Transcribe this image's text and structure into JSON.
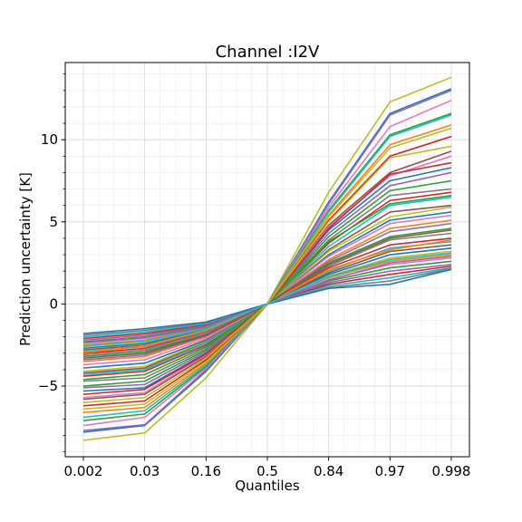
{
  "chart_data": {
    "type": "line",
    "title": "Channel :I2V",
    "xlabel": "Quantiles",
    "ylabel": "Prediction uncertainty [K]",
    "categories": [
      "0.002",
      "0.03",
      "0.16",
      "0.5",
      "0.84",
      "0.97",
      "0.998"
    ],
    "ylim": [
      -9.3,
      14.7
    ],
    "yticks": [
      -5,
      0,
      5,
      10
    ],
    "ytick_labels": [
      "−5",
      "0",
      "5",
      "10"
    ],
    "grid": true,
    "legend": "none",
    "series": [
      {
        "values": [
          -8.3,
          -7.85,
          -4.5,
          0,
          6.8,
          12.3,
          13.8
        ],
        "color": "#bcbd22"
      },
      {
        "values": [
          -7.8,
          -7.4,
          -4.1,
          0,
          6.2,
          11.6,
          13.1
        ],
        "color": "#1f77b4"
      },
      {
        "values": [
          -7.7,
          -7.35,
          -4.0,
          0,
          6.1,
          11.5,
          13.0
        ],
        "color": "#9467bd"
      },
      {
        "values": [
          -7.4,
          -6.9,
          -3.9,
          0,
          5.9,
          10.8,
          12.4
        ],
        "color": "#e377c2"
      },
      {
        "values": [
          -7.1,
          -6.7,
          -3.8,
          0,
          5.7,
          10.3,
          11.6
        ],
        "color": "#2ca02c"
      },
      {
        "values": [
          -6.9,
          -6.5,
          -3.7,
          0,
          5.6,
          10.2,
          11.5
        ],
        "color": "#17becf"
      },
      {
        "values": [
          -6.6,
          -6.3,
          -3.6,
          0,
          5.4,
          9.7,
          10.9
        ],
        "color": "#ff7f0e"
      },
      {
        "values": [
          -6.4,
          -6.1,
          -3.5,
          0,
          5.3,
          9.5,
          10.7
        ],
        "color": "#bcbd22"
      },
      {
        "values": [
          -6.2,
          -5.9,
          -3.4,
          0,
          5.1,
          9.0,
          10.2
        ],
        "color": "#d62728"
      },
      {
        "values": [
          -5.8,
          -5.5,
          -3.2,
          0,
          4.8,
          8.0,
          9.3
        ],
        "color": "#8c564b"
      },
      {
        "values": [
          -5.7,
          -5.4,
          -3.1,
          0,
          4.7,
          7.8,
          9.0
        ],
        "color": "#e377c2"
      },
      {
        "values": [
          -5.3,
          -5.1,
          -3.0,
          0,
          4.5,
          7.5,
          8.3
        ],
        "color": "#1f77b4"
      },
      {
        "values": [
          -5.1,
          -4.9,
          -2.9,
          0,
          4.3,
          7.2,
          8.0
        ],
        "color": "#9467bd"
      },
      {
        "values": [
          -5.0,
          -4.7,
          -2.8,
          0,
          4.1,
          6.9,
          7.5
        ],
        "color": "#2ca02c"
      },
      {
        "values": [
          -4.7,
          -4.5,
          -2.7,
          0,
          3.9,
          6.6,
          7.0
        ],
        "color": "#7f7f7f"
      },
      {
        "values": [
          -4.4,
          -4.1,
          -2.5,
          0,
          3.7,
          6.3,
          6.8
        ],
        "color": "#d62728"
      },
      {
        "values": [
          -4.3,
          -4.0,
          -2.4,
          0,
          3.5,
          6.0,
          6.5
        ],
        "color": "#17becf"
      },
      {
        "values": [
          -4.2,
          -3.9,
          -2.3,
          0,
          3.3,
          5.6,
          6.0
        ],
        "color": "#8c564b"
      },
      {
        "values": [
          -4.1,
          -3.8,
          -2.25,
          0,
          3.2,
          5.3,
          5.9
        ],
        "color": "#bcbd22"
      },
      {
        "values": [
          -3.9,
          -3.6,
          -2.2,
          0,
          3.0,
          5.1,
          5.6
        ],
        "color": "#1f77b4"
      },
      {
        "values": [
          -3.7,
          -3.4,
          -2.1,
          0,
          2.9,
          4.9,
          5.4
        ],
        "color": "#e377c2"
      },
      {
        "values": [
          -3.5,
          -3.2,
          -2.0,
          0,
          2.7,
          4.6,
          5.1
        ],
        "color": "#ff7f0e"
      },
      {
        "values": [
          -3.4,
          -3.1,
          -1.95,
          0,
          2.6,
          4.4,
          4.9
        ],
        "color": "#9467bd"
      },
      {
        "values": [
          -3.2,
          -2.9,
          -1.85,
          0,
          2.5,
          4.1,
          4.6
        ],
        "color": "#2ca02c"
      },
      {
        "values": [
          -3.1,
          -2.8,
          -1.8,
          0,
          2.3,
          3.9,
          4.3
        ],
        "color": "#7f7f7f"
      },
      {
        "values": [
          -3.0,
          -2.7,
          -1.7,
          0,
          2.2,
          3.6,
          4.0
        ],
        "color": "#d62728"
      },
      {
        "values": [
          -2.9,
          -2.6,
          -1.65,
          0,
          2.0,
          3.4,
          3.8
        ],
        "color": "#17becf"
      },
      {
        "values": [
          -2.8,
          -2.5,
          -1.6,
          0,
          1.9,
          3.2,
          3.6
        ],
        "color": "#8c564b"
      },
      {
        "values": [
          -2.7,
          -2.4,
          -1.55,
          0,
          1.8,
          3.0,
          3.4
        ],
        "color": "#1f77b4"
      },
      {
        "values": [
          -2.6,
          -2.3,
          -1.5,
          0,
          1.7,
          2.8,
          3.2
        ],
        "color": "#bcbd22"
      },
      {
        "values": [
          -2.5,
          -2.2,
          -1.45,
          0,
          1.6,
          2.6,
          3.0
        ],
        "color": "#ff7f0e"
      },
      {
        "values": [
          -2.4,
          -2.1,
          -1.4,
          0,
          1.5,
          2.4,
          2.8
        ],
        "color": "#e377c2"
      },
      {
        "values": [
          -2.3,
          -2.0,
          -1.35,
          0,
          1.4,
          2.2,
          2.6
        ],
        "color": "#2ca02c"
      },
      {
        "values": [
          -2.2,
          -1.9,
          -1.3,
          0,
          1.3,
          2.0,
          2.4
        ],
        "color": "#9467bd"
      },
      {
        "values": [
          -2.1,
          -1.8,
          -1.25,
          0,
          1.2,
          1.8,
          2.3
        ],
        "color": "#d62728"
      },
      {
        "values": [
          -2.0,
          -1.7,
          -1.2,
          0,
          1.1,
          1.6,
          2.2
        ],
        "color": "#17becf"
      },
      {
        "values": [
          -1.9,
          -1.6,
          -1.15,
          0,
          1.0,
          1.4,
          2.15
        ],
        "color": "#7f7f7f"
      },
      {
        "values": [
          -1.8,
          -1.5,
          -1.1,
          0,
          0.95,
          1.2,
          2.1
        ],
        "color": "#1f77b4"
      },
      {
        "values": [
          -2.95,
          -2.55,
          -1.6,
          0,
          2.1,
          3.3,
          3.9
        ],
        "color": "#ff7f0e"
      },
      {
        "values": [
          -3.3,
          -3.0,
          -1.9,
          0,
          2.4,
          4.0,
          4.5
        ],
        "color": "#8c564b"
      },
      {
        "values": [
          -4.6,
          -4.3,
          -2.6,
          0,
          3.8,
          6.1,
          6.6
        ],
        "color": "#2ca02c"
      },
      {
        "values": [
          -5.5,
          -5.2,
          -3.05,
          0,
          4.6,
          7.9,
          8.6
        ],
        "color": "#d62728"
      },
      {
        "values": [
          -6.0,
          -5.7,
          -3.3,
          0,
          5.0,
          8.9,
          9.6
        ],
        "color": "#bcbd22"
      },
      {
        "values": [
          -2.35,
          -2.05,
          -1.42,
          0,
          1.45,
          2.5,
          2.9
        ],
        "color": "#9467bd"
      },
      {
        "values": [
          -2.55,
          -2.25,
          -1.5,
          0,
          1.65,
          2.7,
          3.1
        ],
        "color": "#17becf"
      }
    ]
  }
}
